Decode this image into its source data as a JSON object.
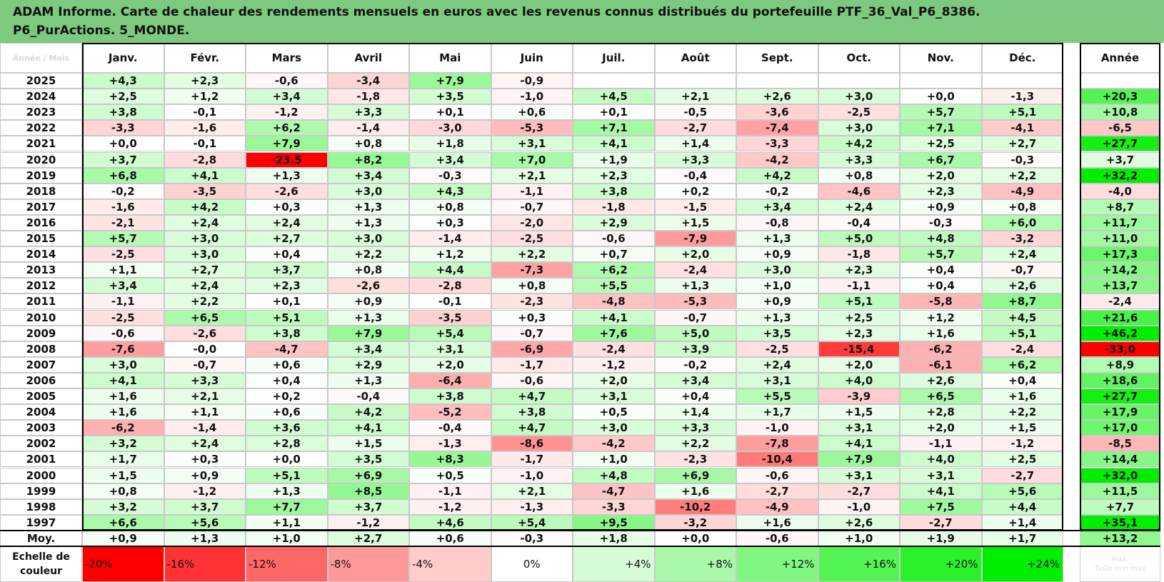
{
  "title": {
    "line1": "ADAM Informe. Carte de chaleur des rendements mensuels en euros avec les revenus connus distribués du portefeuille PTF_36_Val_P6_8386.",
    "line2": "P6_PurActions. 5_MONDE."
  },
  "corner_label": "Année / Mois",
  "chart_data": {
    "type": "heatmap",
    "columns": [
      "Janv.",
      "Févr.",
      "Mars",
      "Avril",
      "Mai",
      "Juin",
      "Juil.",
      "Août",
      "Sept.",
      "Oct.",
      "Nov.",
      "Déc."
    ],
    "annual_header": "Année",
    "rows": [
      {
        "year": "2025",
        "values": [
          "+4,3",
          "+2,3",
          "-0,6",
          "-3,4",
          "+7,9",
          "-0,9",
          "",
          "",
          "",
          "",
          "",
          ""
        ],
        "annual": ""
      },
      {
        "year": "2024",
        "values": [
          "+2,5",
          "+1,2",
          "+3,4",
          "-1,8",
          "+3,5",
          "-1,0",
          "+4,5",
          "+2,1",
          "+2,6",
          "+3,0",
          "+0,0",
          "-1,3"
        ],
        "annual": "+20,3"
      },
      {
        "year": "2023",
        "values": [
          "+3,8",
          "-0,1",
          "-1,2",
          "+3,3",
          "+0,1",
          "+0,6",
          "+0,1",
          "-0,5",
          "-3,6",
          "-2,5",
          "+5,7",
          "+5,1"
        ],
        "annual": "+10,8"
      },
      {
        "year": "2022",
        "values": [
          "-3,3",
          "-1,6",
          "+6,2",
          "-1,4",
          "-3,0",
          "-5,3",
          "+7,1",
          "-2,7",
          "-7,4",
          "+3,0",
          "+7,1",
          "-4,1"
        ],
        "annual": "-6,5"
      },
      {
        "year": "2021",
        "values": [
          "+0,0",
          "-0,1",
          "+7,9",
          "+0,8",
          "+1,8",
          "+3,1",
          "+4,1",
          "+1,4",
          "-3,3",
          "+4,2",
          "+2,5",
          "+2,7"
        ],
        "annual": "+27,7"
      },
      {
        "year": "2020",
        "values": [
          "+3,7",
          "-2,8",
          "-23,5",
          "+8,2",
          "+3,4",
          "+7,0",
          "+1,9",
          "+3,3",
          "-4,2",
          "+3,3",
          "+6,7",
          "-0,3"
        ],
        "annual": "+3,7"
      },
      {
        "year": "2019",
        "values": [
          "+6,8",
          "+4,1",
          "+1,3",
          "+3,4",
          "-0,3",
          "+2,1",
          "+2,3",
          "-0,4",
          "+4,2",
          "+0,8",
          "+2,0",
          "+2,2"
        ],
        "annual": "+32,2"
      },
      {
        "year": "2018",
        "values": [
          "-0,2",
          "-3,5",
          "-2,6",
          "+3,0",
          "+4,3",
          "-1,1",
          "+3,8",
          "+0,2",
          "-0,2",
          "-4,6",
          "+2,3",
          "-4,9"
        ],
        "annual": "-4,0"
      },
      {
        "year": "2017",
        "values": [
          "-1,6",
          "+4,2",
          "+0,3",
          "+1,3",
          "+0,8",
          "-0,7",
          "-1,8",
          "-1,5",
          "+3,4",
          "+2,4",
          "+0,9",
          "+0,8"
        ],
        "annual": "+8,7"
      },
      {
        "year": "2016",
        "values": [
          "-2,1",
          "+2,4",
          "+2,4",
          "+1,3",
          "+0,3",
          "-2,0",
          "+2,9",
          "+1,5",
          "-0,8",
          "-0,4",
          "-0,3",
          "+6,0"
        ],
        "annual": "+11,7"
      },
      {
        "year": "2015",
        "values": [
          "+5,7",
          "+3,0",
          "+2,7",
          "+3,0",
          "-1,4",
          "-2,5",
          "-0,6",
          "-7,9",
          "+1,3",
          "+5,0",
          "+4,8",
          "-3,2"
        ],
        "annual": "+11,0"
      },
      {
        "year": "2014",
        "values": [
          "-2,5",
          "+3,0",
          "+0,4",
          "+2,2",
          "+1,2",
          "+2,2",
          "+0,7",
          "+2,0",
          "+0,9",
          "-1,8",
          "+5,7",
          "+2,4"
        ],
        "annual": "+17,3"
      },
      {
        "year": "2013",
        "values": [
          "+1,1",
          "+2,7",
          "+3,7",
          "+0,8",
          "+4,4",
          "-7,3",
          "+6,2",
          "-2,4",
          "+3,0",
          "+2,3",
          "+0,4",
          "-0,7"
        ],
        "annual": "+14,2"
      },
      {
        "year": "2012",
        "values": [
          "+3,4",
          "+2,4",
          "+2,3",
          "-2,6",
          "-2,8",
          "+0,8",
          "+5,5",
          "+1,3",
          "+1,0",
          "-1,1",
          "+0,4",
          "+2,6"
        ],
        "annual": "+13,7"
      },
      {
        "year": "2011",
        "values": [
          "-1,1",
          "+2,2",
          "+0,1",
          "+0,9",
          "-0,1",
          "-2,3",
          "-4,8",
          "-5,3",
          "+0,9",
          "+5,1",
          "-5,8",
          "+8,7"
        ],
        "annual": "-2,4"
      },
      {
        "year": "2010",
        "values": [
          "-2,5",
          "+6,5",
          "+5,1",
          "+1,3",
          "-3,5",
          "+0,3",
          "+4,1",
          "-0,7",
          "+1,3",
          "+2,5",
          "+1,2",
          "+4,5"
        ],
        "annual": "+21,6"
      },
      {
        "year": "2009",
        "values": [
          "-0,6",
          "-2,6",
          "+3,8",
          "+7,9",
          "+5,4",
          "-0,7",
          "+7,6",
          "+5,0",
          "+3,5",
          "+2,3",
          "+1,6",
          "+5,1"
        ],
        "annual": "+46,2"
      },
      {
        "year": "2008",
        "values": [
          "-7,6",
          "-0,0",
          "-4,7",
          "+3,4",
          "+3,1",
          "-6,9",
          "-2,4",
          "+3,9",
          "-2,5",
          "-15,4",
          "-6,2",
          "-2,4"
        ],
        "annual": "-33,0"
      },
      {
        "year": "2007",
        "values": [
          "+3,0",
          "-0,7",
          "+0,6",
          "+2,9",
          "+2,0",
          "-1,7",
          "-1,2",
          "-0,2",
          "+2,4",
          "+2,0",
          "-6,1",
          "+6,2"
        ],
        "annual": "+8,9"
      },
      {
        "year": "2006",
        "values": [
          "+4,1",
          "+3,3",
          "+0,4",
          "+1,3",
          "-6,4",
          "-0,6",
          "+2,0",
          "+3,4",
          "+3,1",
          "+4,0",
          "+2,6",
          "+0,4"
        ],
        "annual": "+18,6"
      },
      {
        "year": "2005",
        "values": [
          "+1,6",
          "+2,1",
          "+0,2",
          "-0,4",
          "+3,8",
          "+4,7",
          "+3,1",
          "+0,4",
          "+5,5",
          "-3,9",
          "+6,5",
          "+1,6"
        ],
        "annual": "+27,7"
      },
      {
        "year": "2004",
        "values": [
          "+1,6",
          "+1,1",
          "+0,6",
          "+4,2",
          "-5,2",
          "+3,8",
          "+0,5",
          "+1,4",
          "+1,7",
          "+1,5",
          "+2,8",
          "+2,2"
        ],
        "annual": "+17,9"
      },
      {
        "year": "2003",
        "values": [
          "-6,2",
          "-1,4",
          "+3,6",
          "+4,1",
          "-0,4",
          "+4,7",
          "+3,0",
          "+3,3",
          "-1,0",
          "+3,1",
          "+2,0",
          "+1,5"
        ],
        "annual": "+17,0"
      },
      {
        "year": "2002",
        "values": [
          "+3,2",
          "+2,4",
          "+2,8",
          "+1,5",
          "-1,3",
          "-8,6",
          "-4,2",
          "+2,2",
          "-7,8",
          "+4,1",
          "-1,1",
          "-1,2"
        ],
        "annual": "-8,5"
      },
      {
        "year": "2001",
        "values": [
          "+1,7",
          "+0,3",
          "+0,0",
          "+3,5",
          "+8,3",
          "-1,7",
          "+1,0",
          "-2,3",
          "-10,4",
          "+7,9",
          "+4,0",
          "+2,5"
        ],
        "annual": "+14,4"
      },
      {
        "year": "2000",
        "values": [
          "+1,5",
          "+0,9",
          "+5,1",
          "+6,9",
          "+0,5",
          "-1,0",
          "+4,8",
          "+6,9",
          "-0,6",
          "+3,1",
          "+3,1",
          "-2,7"
        ],
        "annual": "+32,0"
      },
      {
        "year": "1999",
        "values": [
          "+0,8",
          "-1,2",
          "+1,3",
          "+8,5",
          "-1,1",
          "+2,1",
          "-4,7",
          "+1,6",
          "-2,7",
          "-2,7",
          "+4,1",
          "+5,6"
        ],
        "annual": "+11,5"
      },
      {
        "year": "1998",
        "values": [
          "+3,2",
          "+3,7",
          "+7,7",
          "+3,7",
          "-1,2",
          "-1,3",
          "-3,3",
          "-10,2",
          "-4,9",
          "-1,0",
          "+7,5",
          "+4,4"
        ],
        "annual": "+7,7"
      },
      {
        "year": "1997",
        "values": [
          "+6,6",
          "+5,6",
          "+1,1",
          "-1,2",
          "+4,6",
          "+5,4",
          "+9,5",
          "-3,2",
          "+1,6",
          "+2,6",
          "-2,7",
          "+1,4"
        ],
        "annual": "+35,1"
      }
    ],
    "average_row": {
      "label": "Moy.",
      "values": [
        "+0,9",
        "+1,3",
        "+1,0",
        "+2,7",
        "+0,6",
        "-0,3",
        "+1,8",
        "+0,0",
        "-0,6",
        "+1,0",
        "+1,9",
        "+1,7"
      ],
      "annual": "+13,2"
    },
    "scale": {
      "label_line1": "Echelle de",
      "label_line2": "couleur",
      "steps": [
        "-20%",
        "-16%",
        "-12%",
        "-8%",
        "-4%",
        "0%",
        "+4%",
        "+8%",
        "+12%",
        "+16%",
        "+20%",
        "+24%"
      ],
      "step_values": [
        -20,
        -16,
        -12,
        -8,
        -4,
        0,
        4,
        8,
        12,
        16,
        20,
        24
      ],
      "extra_line1": "Max.",
      "extra_line2": "Taille min max"
    },
    "color_stops": {
      "negative_max": "#ff0000",
      "neutral": "#ffffff",
      "positive_max": "#00ee00"
    }
  }
}
